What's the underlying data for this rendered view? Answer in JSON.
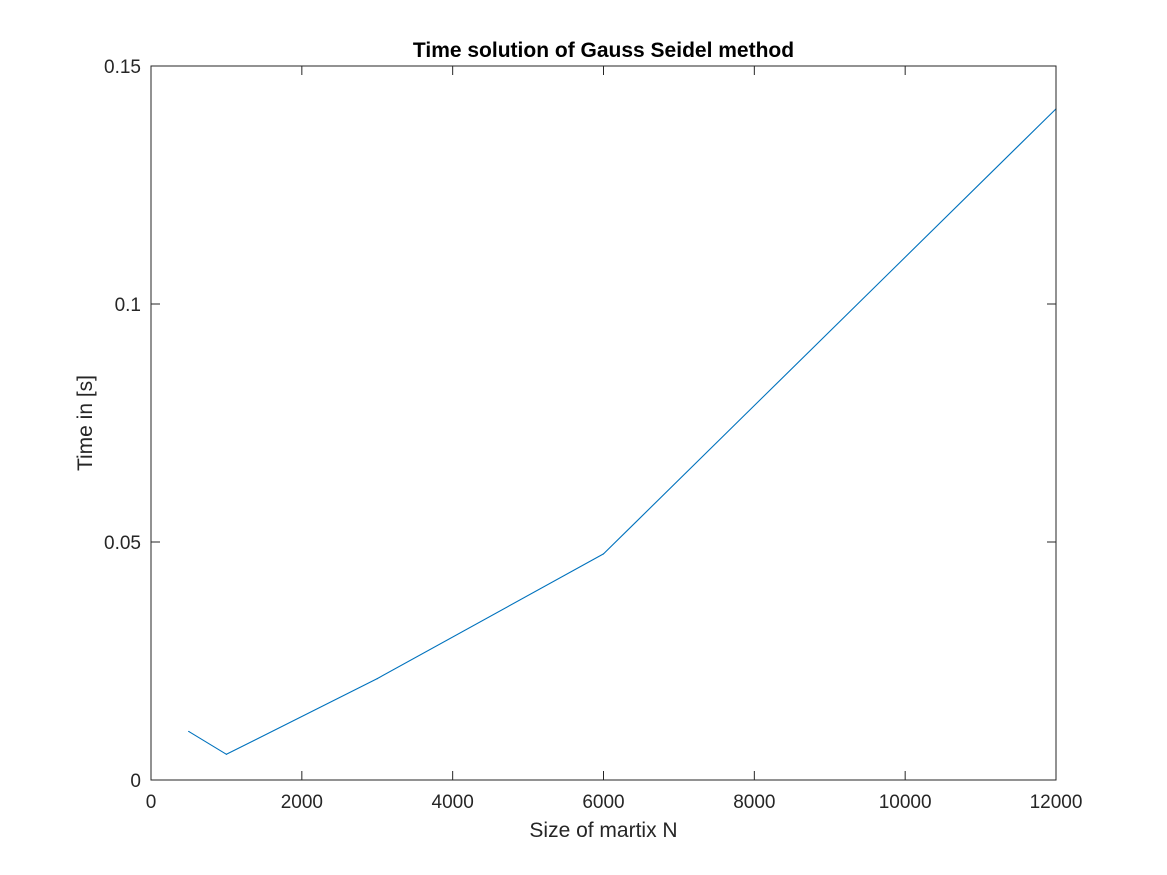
{
  "chart_data": {
    "type": "line",
    "title": "Time solution of Gauss Seidel method",
    "xlabel": "Size of martix N",
    "ylabel": "Time in [s]",
    "xlim": [
      0,
      12000
    ],
    "ylim": [
      0,
      0.15
    ],
    "xticks": [
      0,
      2000,
      4000,
      6000,
      8000,
      10000,
      12000
    ],
    "xtick_labels": [
      "0",
      "2000",
      "4000",
      "6000",
      "8000",
      "10000",
      "12000"
    ],
    "yticks": [
      0,
      0.05,
      0.1,
      0.15
    ],
    "ytick_labels": [
      "0",
      "0.05",
      "0.1",
      "0.15"
    ],
    "grid": false,
    "box": true,
    "series": [
      {
        "color": "#0072BD",
        "x": [
          500,
          1000,
          3000,
          6000,
          12000
        ],
        "y": [
          0.0102,
          0.0054,
          0.0213,
          0.0475,
          0.141
        ]
      }
    ]
  }
}
